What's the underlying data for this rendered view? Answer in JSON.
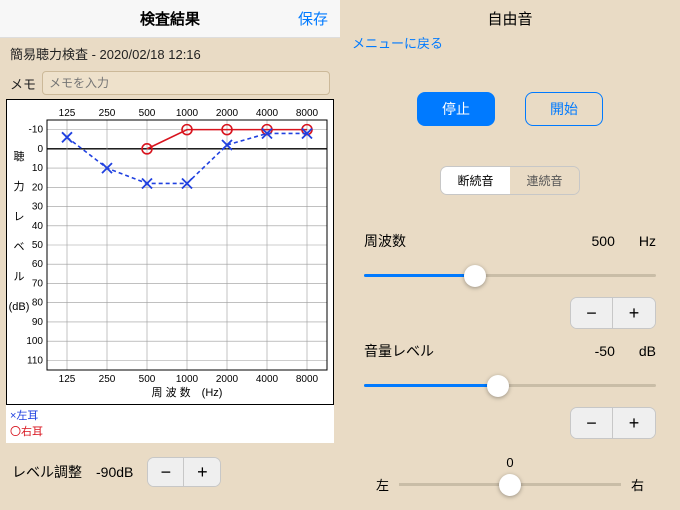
{
  "left": {
    "header": {
      "title": "検査結果",
      "save": "保存"
    },
    "subtitle": "簡易聴力検査 - 2020/02/18 12:16",
    "memo": {
      "label": "メモ",
      "placeholder": "メモを入力"
    },
    "chart": {
      "type": "line",
      "x_categories": [
        "125",
        "250",
        "500",
        "1000",
        "2000",
        "4000",
        "8000"
      ],
      "x_label": "周 波 数　(Hz)",
      "y_label_chars": [
        "聴",
        "力",
        "レ",
        "ベ",
        "ル",
        "(dB)"
      ],
      "y_ticks": [
        -10,
        0,
        10,
        20,
        30,
        40,
        50,
        60,
        70,
        80,
        90,
        100,
        110
      ],
      "ylim": [
        -15,
        115
      ],
      "left_ear": {
        "color": "#2041e0",
        "dash": "4,3",
        "marker": "x",
        "values": [
          -6,
          10,
          18,
          18,
          -2,
          -8,
          -8
        ]
      },
      "right_ear": {
        "color": "#d8141e",
        "dash": "none",
        "marker": "o",
        "values": [
          null,
          null,
          0,
          -10,
          -10,
          -10,
          -10
        ]
      },
      "grid_color": "#9b9b9b",
      "zero_line_color": "#000000",
      "background_color": "#ffffff",
      "font_size_axis": 10
    },
    "legend": {
      "left": "×左耳",
      "right": "〇右耳",
      "left_color": "#2041e0",
      "right_color": "#d8141e"
    },
    "level_adjust": {
      "label": "レベル調整",
      "value": "-90dB"
    }
  },
  "right": {
    "title": "自由音",
    "back": "メニューに戻る",
    "stop": "停止",
    "start": "開始",
    "segmented": {
      "a": "断続音",
      "b": "連続音",
      "active": 0
    },
    "freq": {
      "label": "周波数",
      "value": "500",
      "unit": "Hz",
      "slider_pct": 38
    },
    "vol": {
      "label": "音量レベル",
      "value": "-50",
      "unit": "dB",
      "slider_pct": 46
    },
    "balance": {
      "value_label": "0",
      "left": "左",
      "right": "右",
      "pct": 50
    }
  }
}
